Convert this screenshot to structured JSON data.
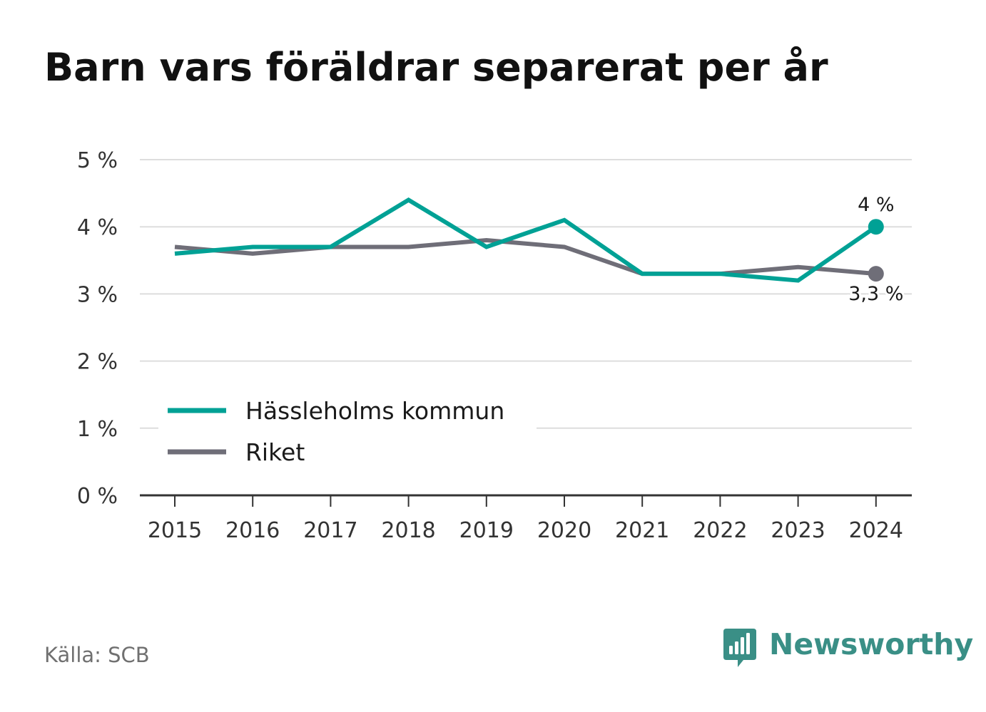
{
  "title": "Barn vars föräldrar separerat per år",
  "source": "Källa: SCB",
  "brand": {
    "name": "Newsworthy",
    "icon": "bar-chart-speech-bubble-icon",
    "color": "#3a8f86"
  },
  "chart_data": {
    "type": "line",
    "title": "Barn vars föräldrar separerat per år",
    "xlabel": "",
    "ylabel": "",
    "x": [
      "2015",
      "2016",
      "2017",
      "2018",
      "2019",
      "2020",
      "2021",
      "2022",
      "2023",
      "2024"
    ],
    "ylim": [
      0,
      5
    ],
    "yticks": [
      0,
      1,
      2,
      3,
      4,
      5
    ],
    "ytick_labels": [
      "0 %",
      "1 %",
      "2 %",
      "3 %",
      "4 %",
      "5 %"
    ],
    "grid": true,
    "legend_position": "lower-left",
    "series": [
      {
        "name": "Hässleholms kommun",
        "color": "#00a195",
        "values": [
          3.6,
          3.7,
          3.7,
          4.4,
          3.7,
          4.1,
          3.3,
          3.3,
          3.2,
          4.0
        ],
        "end_label": "4 %"
      },
      {
        "name": "Riket",
        "color": "#6f6e78",
        "values": [
          3.7,
          3.6,
          3.7,
          3.7,
          3.8,
          3.7,
          3.3,
          3.3,
          3.4,
          3.3
        ],
        "end_label": "3,3 %"
      }
    ]
  }
}
